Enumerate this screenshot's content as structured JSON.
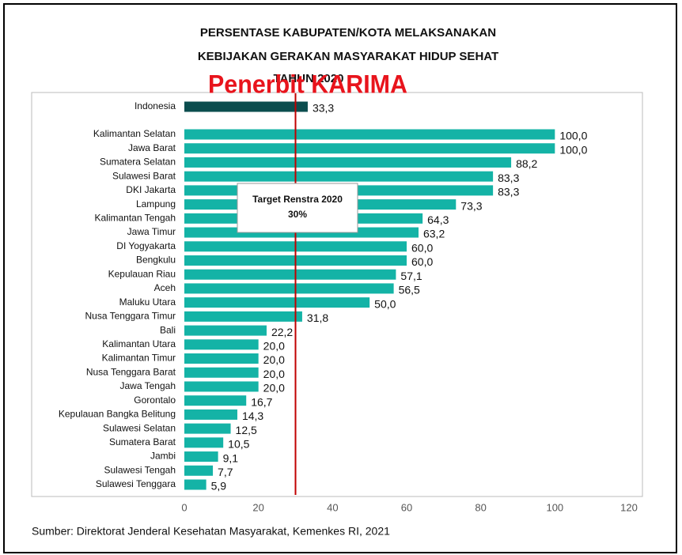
{
  "chart_data": {
    "type": "bar",
    "orientation": "horizontal",
    "title": [
      "PERSENTASE KABUPATEN/KOTA MELAKSANAKAN",
      "KEBIJAKAN GERAKAN MASYARAKAT HIDUP SEHAT",
      "TAHUN 2020"
    ],
    "watermark": "Penerbit KARIMA",
    "categories": [
      "Indonesia",
      "Kalimantan Selatan",
      "Jawa Barat",
      "Sumatera Selatan",
      "Sulawesi Barat",
      "DKI Jakarta",
      "Lampung",
      "Kalimantan Tengah",
      "Jawa Timur",
      "DI Yogyakarta",
      "Bengkulu",
      "Kepulauan Riau",
      "Aceh",
      "Maluku Utara",
      "Nusa Tenggara Timur",
      "Bali",
      "Kalimantan Utara",
      "Kalimantan Timur",
      "Nusa Tenggara Barat",
      "Jawa Tengah",
      "Gorontalo",
      "Kepulauan Bangka Belitung",
      "Sulawesi Selatan",
      "Sumatera Barat",
      "Jambi",
      "Sulawesi Tengah",
      "Sulawesi Tenggara"
    ],
    "values": [
      33.3,
      100,
      100,
      88.2,
      83.3,
      83.3,
      73.3,
      64.3,
      63.2,
      60,
      60,
      57.1,
      56.5,
      50,
      31.8,
      22.2,
      20,
      20,
      20,
      20,
      16.7,
      14.3,
      12.5,
      10.5,
      9.1,
      7.7,
      5.9
    ],
    "value_labels": [
      "33,3",
      "100,0",
      "100,0",
      "88,2",
      "83,3",
      "83,3",
      "73,3",
      "64,3",
      "63,2",
      "60,0",
      "60,0",
      "57,1",
      "56,5",
      "50,0",
      "31,8",
      "22,2",
      "20,0",
      "20,0",
      "20,0",
      "20,0",
      "16,7",
      "14,3",
      "12,5",
      "10,5",
      "9,1",
      "7,7",
      "5,9"
    ],
    "colors": [
      "#0b4d4e",
      "#14b3a6",
      "#14b3a6",
      "#14b3a6",
      "#14b3a6",
      "#14b3a6",
      "#14b3a6",
      "#14b3a6",
      "#14b3a6",
      "#14b3a6",
      "#14b3a6",
      "#14b3a6",
      "#14b3a6",
      "#14b3a6",
      "#14b3a6",
      "#14b3a6",
      "#14b3a6",
      "#14b3a6",
      "#14b3a6",
      "#14b3a6",
      "#14b3a6",
      "#14b3a6",
      "#14b3a6",
      "#14b3a6",
      "#14b3a6",
      "#14b3a6",
      "#14b3a6"
    ],
    "xlim": [
      0,
      120
    ],
    "xticks": [
      0,
      20,
      40,
      60,
      80,
      100,
      120
    ],
    "target": {
      "name": "Target Renstra 2020",
      "value": 30,
      "label": "30%",
      "color": "#c00000"
    },
    "source": "Sumber: Direktorat Jenderal Kesehatan Masyarakat, Kemenkes RI, 2021"
  }
}
